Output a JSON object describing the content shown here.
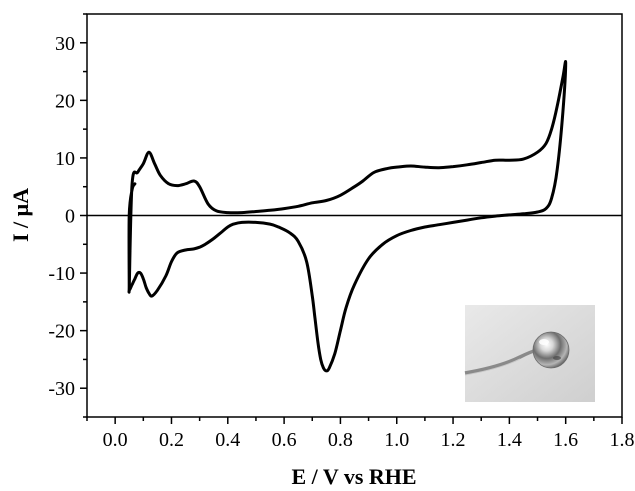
{
  "chart_data": {
    "type": "line",
    "title": "",
    "xlabel": "E / V vs RHE",
    "ylabel": "I / μA",
    "xlim": [
      -0.1,
      1.8
    ],
    "ylim": [
      -35,
      35
    ],
    "xticks": [
      0.0,
      0.2,
      0.4,
      0.6,
      0.8,
      1.0,
      1.2,
      1.4,
      1.6,
      1.8
    ],
    "xtick_labels": [
      "0.0",
      "0.2",
      "0.4",
      "0.6",
      "0.8",
      "1.0",
      "1.2",
      "1.4",
      "1.6",
      "1.8"
    ],
    "yticks": [
      -30,
      -20,
      -10,
      0,
      10,
      20,
      30
    ],
    "ytick_labels": [
      "-30",
      "-20",
      "-10",
      "0",
      "10",
      "20",
      "30"
    ],
    "grid": false,
    "legend": "none",
    "zero_line": true,
    "inset_photo": "polycrystalline metal bead electrode on wire, bottom-right corner",
    "series": [
      {
        "color": "#000000",
        "x": [
          0.05,
          0.06,
          0.08,
          0.1,
          0.12,
          0.14,
          0.16,
          0.19,
          0.22,
          0.25,
          0.28,
          0.3,
          0.33,
          0.36,
          0.4,
          0.45,
          0.5,
          0.55,
          0.6,
          0.65,
          0.7,
          0.75,
          0.8,
          0.85,
          0.88,
          0.92,
          0.97,
          1.0,
          1.05,
          1.1,
          1.15,
          1.2,
          1.25,
          1.3,
          1.35,
          1.4,
          1.45,
          1.5,
          1.53,
          1.55,
          1.57,
          1.59,
          1.6,
          1.59,
          1.57,
          1.55,
          1.53,
          1.5,
          1.45,
          1.4,
          1.35,
          1.3,
          1.25,
          1.2,
          1.15,
          1.1,
          1.05,
          1.0,
          0.95,
          0.9,
          0.85,
          0.82,
          0.8,
          0.78,
          0.76,
          0.75,
          0.74,
          0.73,
          0.72,
          0.71,
          0.7,
          0.68,
          0.65,
          0.62,
          0.58,
          0.55,
          0.5,
          0.45,
          0.42,
          0.4,
          0.38,
          0.35,
          0.32,
          0.3,
          0.28,
          0.25,
          0.22,
          0.2,
          0.18,
          0.15,
          0.13,
          0.12,
          0.11,
          0.1,
          0.09,
          0.08,
          0.07,
          0.06,
          0.05,
          0.05,
          0.05,
          0.06,
          0.07
        ],
        "y": [
          -13.0,
          5.5,
          7.5,
          9.0,
          11.0,
          9.0,
          7.0,
          5.5,
          5.2,
          5.5,
          6.0,
          5.0,
          2.0,
          0.8,
          0.5,
          0.5,
          0.7,
          0.9,
          1.2,
          1.6,
          2.2,
          2.6,
          3.5,
          5.0,
          6.0,
          7.5,
          8.2,
          8.4,
          8.6,
          8.4,
          8.3,
          8.5,
          8.8,
          9.2,
          9.6,
          9.6,
          9.8,
          11.0,
          12.5,
          15.0,
          19.0,
          24.0,
          26.5,
          18.0,
          8.0,
          3.0,
          1.2,
          0.6,
          0.3,
          0.1,
          -0.1,
          -0.4,
          -0.8,
          -1.2,
          -1.6,
          -2.0,
          -2.6,
          -3.5,
          -5.0,
          -7.5,
          -12.0,
          -16.0,
          -20.0,
          -24.0,
          -26.5,
          -27.0,
          -26.5,
          -25.0,
          -22.0,
          -18.0,
          -14.0,
          -8.0,
          -4.5,
          -3.0,
          -2.0,
          -1.5,
          -1.2,
          -1.2,
          -1.5,
          -2.0,
          -2.8,
          -4.0,
          -5.0,
          -5.5,
          -5.8,
          -6.0,
          -6.5,
          -8.0,
          -10.5,
          -13.0,
          -14.0,
          -13.5,
          -12.5,
          -11.0,
          -10.0,
          -10.0,
          -11.0,
          -12.0,
          -13.0,
          -12.0,
          0.0,
          4.5,
          5.5
        ]
      }
    ]
  }
}
